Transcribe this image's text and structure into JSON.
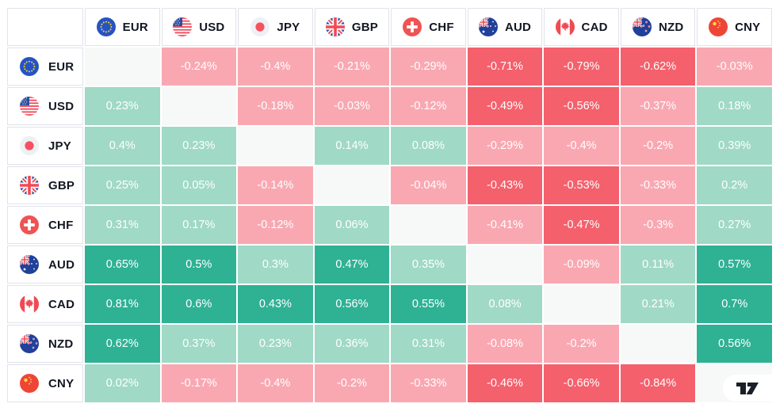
{
  "app": {
    "widget_name": "forex-cross-rates-heatmap",
    "branding_logo": "TradingView"
  },
  "currencies": [
    {
      "code": "EUR",
      "flag": "eu"
    },
    {
      "code": "USD",
      "flag": "us"
    },
    {
      "code": "JPY",
      "flag": "jp"
    },
    {
      "code": "GBP",
      "flag": "gb"
    },
    {
      "code": "CHF",
      "flag": "ch"
    },
    {
      "code": "AUD",
      "flag": "au"
    },
    {
      "code": "CAD",
      "flag": "ca"
    },
    {
      "code": "NZD",
      "flag": "nz"
    },
    {
      "code": "CNY",
      "flag": "cn"
    }
  ],
  "chart_data": {
    "type": "heatmap",
    "unit": "%",
    "rows": [
      "EUR",
      "USD",
      "JPY",
      "GBP",
      "CHF",
      "AUD",
      "CAD",
      "NZD",
      "CNY"
    ],
    "columns": [
      "EUR",
      "USD",
      "JPY",
      "GBP",
      "CHF",
      "AUD",
      "CAD",
      "NZD",
      "CNY"
    ],
    "values": [
      [
        null,
        -0.24,
        -0.4,
        -0.21,
        -0.29,
        -0.71,
        -0.79,
        -0.62,
        -0.03
      ],
      [
        0.23,
        null,
        -0.18,
        -0.03,
        -0.12,
        -0.49,
        -0.56,
        -0.37,
        0.18
      ],
      [
        0.4,
        0.23,
        null,
        0.14,
        0.08,
        -0.29,
        -0.4,
        -0.2,
        0.39
      ],
      [
        0.25,
        0.05,
        -0.14,
        null,
        -0.04,
        -0.43,
        -0.53,
        -0.33,
        0.2
      ],
      [
        0.31,
        0.17,
        -0.12,
        0.06,
        null,
        -0.41,
        -0.47,
        -0.3,
        0.27
      ],
      [
        0.65,
        0.5,
        0.3,
        0.47,
        0.35,
        null,
        -0.09,
        0.11,
        0.57
      ],
      [
        0.81,
        0.6,
        0.43,
        0.56,
        0.55,
        0.08,
        null,
        0.21,
        0.7
      ],
      [
        0.62,
        0.37,
        0.23,
        0.36,
        0.31,
        -0.08,
        -0.2,
        null,
        0.56
      ],
      [
        0.02,
        -0.17,
        -0.4,
        -0.2,
        -0.33,
        -0.46,
        -0.66,
        -0.84,
        null
      ]
    ],
    "display": [
      [
        "",
        "-0.24%",
        "-0.4%",
        "-0.21%",
        "-0.29%",
        "-0.71%",
        "-0.79%",
        "-0.62%",
        "-0.03%"
      ],
      [
        "0.23%",
        "",
        "-0.18%",
        "-0.03%",
        "-0.12%",
        "-0.49%",
        "-0.56%",
        "-0.37%",
        "0.18%"
      ],
      [
        "0.4%",
        "0.23%",
        "",
        "0.14%",
        "0.08%",
        "-0.29%",
        "-0.4%",
        "-0.2%",
        "0.39%"
      ],
      [
        "0.25%",
        "0.05%",
        "-0.14%",
        "",
        "-0.04%",
        "-0.43%",
        "-0.53%",
        "-0.33%",
        "0.2%"
      ],
      [
        "0.31%",
        "0.17%",
        "-0.12%",
        "0.06%",
        "",
        "-0.41%",
        "-0.47%",
        "-0.3%",
        "0.27%"
      ],
      [
        "0.65%",
        "0.5%",
        "0.3%",
        "0.47%",
        "0.35%",
        "",
        "-0.09%",
        "0.11%",
        "0.57%"
      ],
      [
        "0.81%",
        "0.6%",
        "0.43%",
        "0.56%",
        "0.55%",
        "0.08%",
        "",
        "0.21%",
        "0.7%"
      ],
      [
        "0.62%",
        "0.37%",
        "0.23%",
        "0.36%",
        "0.31%",
        "-0.08%",
        "-0.2%",
        "",
        "0.56%"
      ],
      [
        "0.02%",
        "-0.17%",
        "-0.4%",
        "-0.2%",
        "-0.33%",
        "-0.46%",
        "-0.66%",
        "-0.84%",
        ""
      ]
    ],
    "color_scale": {
      "strong_threshold": 0.42,
      "strong_positive": "#2fb194",
      "light_positive": "#a0d9c6",
      "light_negative": "#f9a8b2",
      "strong_negative": "#f4606c",
      "neutral": "#f7f8f8"
    }
  },
  "ui": {
    "grid_line_color": "#e0e3eb",
    "header_text_color": "#131722",
    "cell_text_color": "#ffffff"
  }
}
